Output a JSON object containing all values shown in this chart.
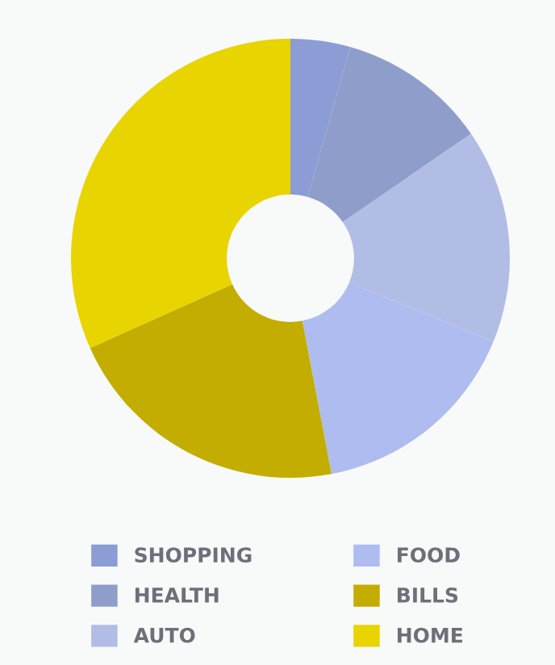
{
  "chart_data": {
    "type": "donut",
    "categories": [
      "SHOPPING",
      "HEALTH",
      "AUTO",
      "FOOD",
      "BILLS",
      "HOME"
    ],
    "values": [
      4.4,
      11.0,
      15.8,
      15.8,
      21.3,
      31.7
    ],
    "colors": [
      "#8c9dd5",
      "#8f9dca",
      "#b2bde6",
      "#afbcef",
      "#c2ad00",
      "#e8d400"
    ],
    "legend": "bottom"
  }
}
